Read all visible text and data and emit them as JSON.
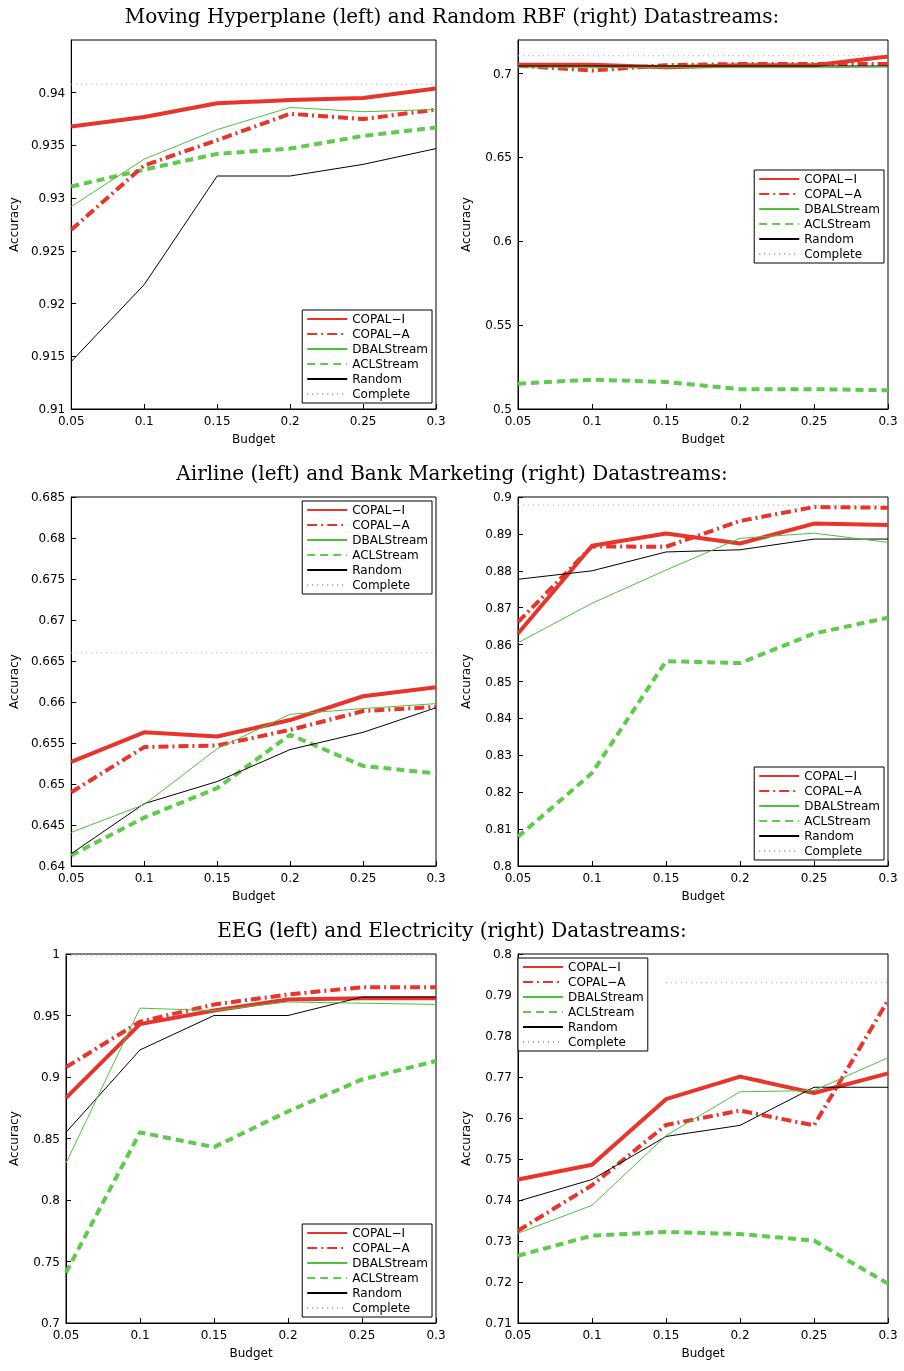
{
  "chart_data": [
    {
      "type": "line",
      "title": "Moving Hyperplane (left) and Random RBF (right) Datastreams:",
      "xlabel": "Budget",
      "ylabel": "Accuracy",
      "x": [
        0.05,
        0.1,
        0.15,
        0.2,
        0.25,
        0.3
      ],
      "xlim": [
        0.05,
        0.3
      ],
      "xticks": [
        0.05,
        0.1,
        0.15,
        0.2,
        0.25,
        0.3
      ],
      "ylim": [
        0.91,
        0.945
      ],
      "yticks": [
        0.91,
        0.915,
        0.92,
        0.925,
        0.93,
        0.935,
        0.94
      ],
      "legend": "bottom right",
      "series": [
        {
          "name": "COPAL−I",
          "color": "#e8342a",
          "line_style": "solid",
          "values": [
            0.9368,
            0.9377,
            0.939,
            0.9393,
            0.9395,
            0.9404
          ]
        },
        {
          "name": "COPAL−A",
          "color": "#e8342a",
          "line_style": "dashdot",
          "values": [
            0.927,
            0.9331,
            0.9355,
            0.938,
            0.9375,
            0.9384
          ]
        },
        {
          "name": "DBALStream",
          "color": "#4cc23c",
          "line_style": "solid",
          "values": [
            0.9292,
            0.9337,
            0.9365,
            0.9386,
            0.9382,
            0.9384
          ]
        },
        {
          "name": "ACLStream",
          "color": "#5ecb4c",
          "line_style": "dashed",
          "values": [
            0.9311,
            0.9327,
            0.9342,
            0.9347,
            0.9359,
            0.9367
          ]
        },
        {
          "name": "Random",
          "color": "#000000",
          "line_style": "solid",
          "values": [
            0.9145,
            0.9218,
            0.9321,
            0.9321,
            0.9332,
            0.9347
          ]
        },
        {
          "name": "Complete",
          "color": "#a8a8a8",
          "line_style": "dotted",
          "values": [
            0.9408,
            0.9408,
            0.9408,
            0.9408,
            0.9408,
            0.9408
          ]
        }
      ]
    },
    {
      "type": "line",
      "xlabel": "Budget",
      "ylabel": "Accuracy",
      "x": [
        0.05,
        0.1,
        0.15,
        0.2,
        0.25,
        0.3
      ],
      "xlim": [
        0.05,
        0.3
      ],
      "xticks": [
        0.05,
        0.1,
        0.15,
        0.2,
        0.25,
        0.3
      ],
      "ylim": [
        0.5,
        0.72
      ],
      "yticks": [
        0.5,
        0.55,
        0.6,
        0.65,
        0.7
      ],
      "legend": "right",
      "series": [
        {
          "name": "COPAL−I",
          "color": "#e8342a",
          "line_style": "solid",
          "values": [
            0.7053,
            0.7053,
            0.7037,
            0.705,
            0.705,
            0.7102
          ]
        },
        {
          "name": "COPAL−A",
          "color": "#e8342a",
          "line_style": "dashdot",
          "values": [
            0.7047,
            0.7018,
            0.705,
            0.7057,
            0.7057,
            0.7057
          ]
        },
        {
          "name": "DBALStream",
          "color": "#4cc23c",
          "line_style": "solid",
          "values": [
            0.7035,
            0.7035,
            0.7035,
            0.7035,
            0.7035,
            0.7038
          ]
        },
        {
          "name": "ACLStream",
          "color": "#5ecb4c",
          "line_style": "dashed",
          "values": [
            0.5151,
            0.5175,
            0.5161,
            0.5118,
            0.5118,
            0.5112
          ]
        },
        {
          "name": "Random",
          "color": "#000000",
          "line_style": "solid",
          "values": [
            0.7045,
            0.7045,
            0.7045,
            0.7045,
            0.7045,
            0.7045
          ]
        },
        {
          "name": "Complete",
          "color": "#a8a8a8",
          "line_style": "dotted",
          "values": [
            0.7106,
            0.7106,
            0.7106,
            0.7106,
            0.7106,
            0.7106
          ]
        }
      ]
    },
    {
      "type": "line",
      "title": "Airline (left) and Bank Marketing (right) Datastreams:",
      "xlabel": "Budget",
      "ylabel": "Accuracy",
      "x": [
        0.05,
        0.1,
        0.15,
        0.2,
        0.25,
        0.3
      ],
      "xlim": [
        0.05,
        0.3
      ],
      "xticks": [
        0.05,
        0.1,
        0.15,
        0.2,
        0.25,
        0.3
      ],
      "ylim": [
        0.64,
        0.685
      ],
      "yticks": [
        0.64,
        0.645,
        0.65,
        0.655,
        0.66,
        0.665,
        0.67,
        0.675,
        0.68,
        0.685
      ],
      "legend": "top right",
      "series": [
        {
          "name": "COPAL−I",
          "color": "#e8342a",
          "line_style": "solid",
          "values": [
            0.6527,
            0.6563,
            0.6558,
            0.6578,
            0.6607,
            0.6618
          ]
        },
        {
          "name": "COPAL−A",
          "color": "#e8342a",
          "line_style": "dashdot",
          "values": [
            0.649,
            0.6545,
            0.6547,
            0.6566,
            0.6589,
            0.6594
          ]
        },
        {
          "name": "DBALStream",
          "color": "#4cc23c",
          "line_style": "solid",
          "values": [
            0.6441,
            0.6475,
            0.6543,
            0.6585,
            0.6592,
            0.6598
          ]
        },
        {
          "name": "ACLStream",
          "color": "#5ecb4c",
          "line_style": "dashed",
          "values": [
            0.6413,
            0.6459,
            0.6495,
            0.656,
            0.6522,
            0.6513
          ]
        },
        {
          "name": "Random",
          "color": "#000000",
          "line_style": "solid",
          "values": [
            0.6415,
            0.6476,
            0.6503,
            0.6542,
            0.6563,
            0.6593
          ]
        },
        {
          "name": "Complete",
          "color": "#a8a8a8",
          "line_style": "dotted",
          "values": [
            0.666,
            0.666,
            0.666,
            0.666,
            0.666,
            0.666
          ]
        }
      ]
    },
    {
      "type": "line",
      "xlabel": "Budget",
      "ylabel": "Accuracy",
      "x": [
        0.05,
        0.1,
        0.15,
        0.2,
        0.25,
        0.3
      ],
      "xlim": [
        0.05,
        0.3
      ],
      "xticks": [
        0.05,
        0.1,
        0.15,
        0.2,
        0.25,
        0.3
      ],
      "ylim": [
        0.8,
        0.9
      ],
      "yticks": [
        0.8,
        0.81,
        0.82,
        0.83,
        0.84,
        0.85,
        0.86,
        0.87,
        0.88,
        0.89,
        0.9
      ],
      "legend": "bottom right",
      "series": [
        {
          "name": "COPAL−I",
          "color": "#e8342a",
          "line_style": "solid",
          "values": [
            0.863,
            0.8868,
            0.8901,
            0.8874,
            0.8928,
            0.8924
          ]
        },
        {
          "name": "COPAL−A",
          "color": "#e8342a",
          "line_style": "dashdot",
          "values": [
            0.8661,
            0.8866,
            0.8865,
            0.8935,
            0.8973,
            0.8971
          ]
        },
        {
          "name": "DBALStream",
          "color": "#4cc23c",
          "line_style": "solid",
          "values": [
            0.8605,
            0.8712,
            0.8802,
            0.8888,
            0.8902,
            0.8877
          ]
        },
        {
          "name": "ACLStream",
          "color": "#5ecb4c",
          "line_style": "dashed",
          "values": [
            0.8079,
            0.8252,
            0.8555,
            0.855,
            0.863,
            0.8673
          ]
        },
        {
          "name": "Random",
          "color": "#000000",
          "line_style": "solid",
          "values": [
            0.8777,
            0.88,
            0.8851,
            0.8857,
            0.8886,
            0.8886
          ]
        },
        {
          "name": "Complete",
          "color": "#a8a8a8",
          "line_style": "dotted",
          "values": [
            0.8978,
            0.8978,
            0.8978,
            0.8978,
            0.8978,
            0.8978
          ]
        }
      ]
    },
    {
      "type": "line",
      "title": "EEG (left) and Electricity (right) Datastreams:",
      "xlabel": "Budget",
      "ylabel": "Accuracy",
      "x": [
        0.05,
        0.1,
        0.15,
        0.2,
        0.25,
        0.3
      ],
      "xlim": [
        0.05,
        0.3
      ],
      "xticks": [
        0.05,
        0.1,
        0.15,
        0.2,
        0.25,
        0.3
      ],
      "ylim": [
        0.7,
        1
      ],
      "yticks": [
        0.7,
        0.75,
        0.8,
        0.85,
        0.9,
        0.95,
        1
      ],
      "legend": "bottom right",
      "series": [
        {
          "name": "COPAL−I",
          "color": "#e8342a",
          "line_style": "solid",
          "values": [
            0.883,
            0.943,
            0.954,
            0.963,
            0.964,
            0.964
          ]
        },
        {
          "name": "COPAL−A",
          "color": "#e8342a",
          "line_style": "dashdot",
          "values": [
            0.908,
            0.945,
            0.959,
            0.967,
            0.973,
            0.973
          ]
        },
        {
          "name": "DBALStream",
          "color": "#4cc23c",
          "line_style": "solid",
          "values": [
            0.83,
            0.956,
            0.954,
            0.961,
            0.96,
            0.959
          ]
        },
        {
          "name": "ACLStream",
          "color": "#5ecb4c",
          "line_style": "dashed",
          "values": [
            0.741,
            0.855,
            0.843,
            0.872,
            0.898,
            0.913
          ]
        },
        {
          "name": "Random",
          "color": "#000000",
          "line_style": "solid",
          "values": [
            0.855,
            0.922,
            0.95,
            0.95,
            0.965,
            0.965
          ]
        },
        {
          "name": "Complete",
          "color": "#a8a8a8",
          "line_style": "dotted",
          "values": [
            0.999,
            0.999,
            0.999,
            0.999,
            0.999,
            0.999
          ]
        }
      ]
    },
    {
      "type": "line",
      "xlabel": "Budget",
      "ylabel": "Accuracy",
      "x": [
        0.05,
        0.1,
        0.15,
        0.2,
        0.25,
        0.3
      ],
      "xlim": [
        0.05,
        0.3
      ],
      "xticks": [
        0.05,
        0.1,
        0.15,
        0.2,
        0.25,
        0.3
      ],
      "ylim": [
        0.71,
        0.8
      ],
      "yticks": [
        0.71,
        0.72,
        0.73,
        0.74,
        0.75,
        0.76,
        0.77,
        0.78,
        0.79,
        0.8
      ],
      "legend": "top left",
      "series": [
        {
          "name": "COPAL−I",
          "color": "#e8342a",
          "line_style": "solid",
          "values": [
            0.745,
            0.7486,
            0.7646,
            0.7701,
            0.7661,
            0.7709
          ]
        },
        {
          "name": "COPAL−A",
          "color": "#e8342a",
          "line_style": "dashdot",
          "values": [
            0.7325,
            0.7436,
            0.7583,
            0.7618,
            0.7582,
            0.7887
          ]
        },
        {
          "name": "DBALStream",
          "color": "#4cc23c",
          "line_style": "solid",
          "values": [
            0.7319,
            0.7387,
            0.7557,
            0.7664,
            0.7667,
            0.7747
          ]
        },
        {
          "name": "ACLStream",
          "color": "#5ecb4c",
          "line_style": "dashed",
          "values": [
            0.7264,
            0.7313,
            0.7322,
            0.7317,
            0.7301,
            0.7196
          ]
        },
        {
          "name": "Random",
          "color": "#000000",
          "line_style": "solid",
          "values": [
            0.7397,
            0.745,
            0.7555,
            0.7582,
            0.7675,
            0.7675
          ]
        },
        {
          "name": "Complete",
          "color": "#a8a8a8",
          "line_style": "dotted",
          "values": [
            null,
            null,
            0.793,
            0.793,
            0.793,
            0.793
          ]
        }
      ]
    }
  ]
}
